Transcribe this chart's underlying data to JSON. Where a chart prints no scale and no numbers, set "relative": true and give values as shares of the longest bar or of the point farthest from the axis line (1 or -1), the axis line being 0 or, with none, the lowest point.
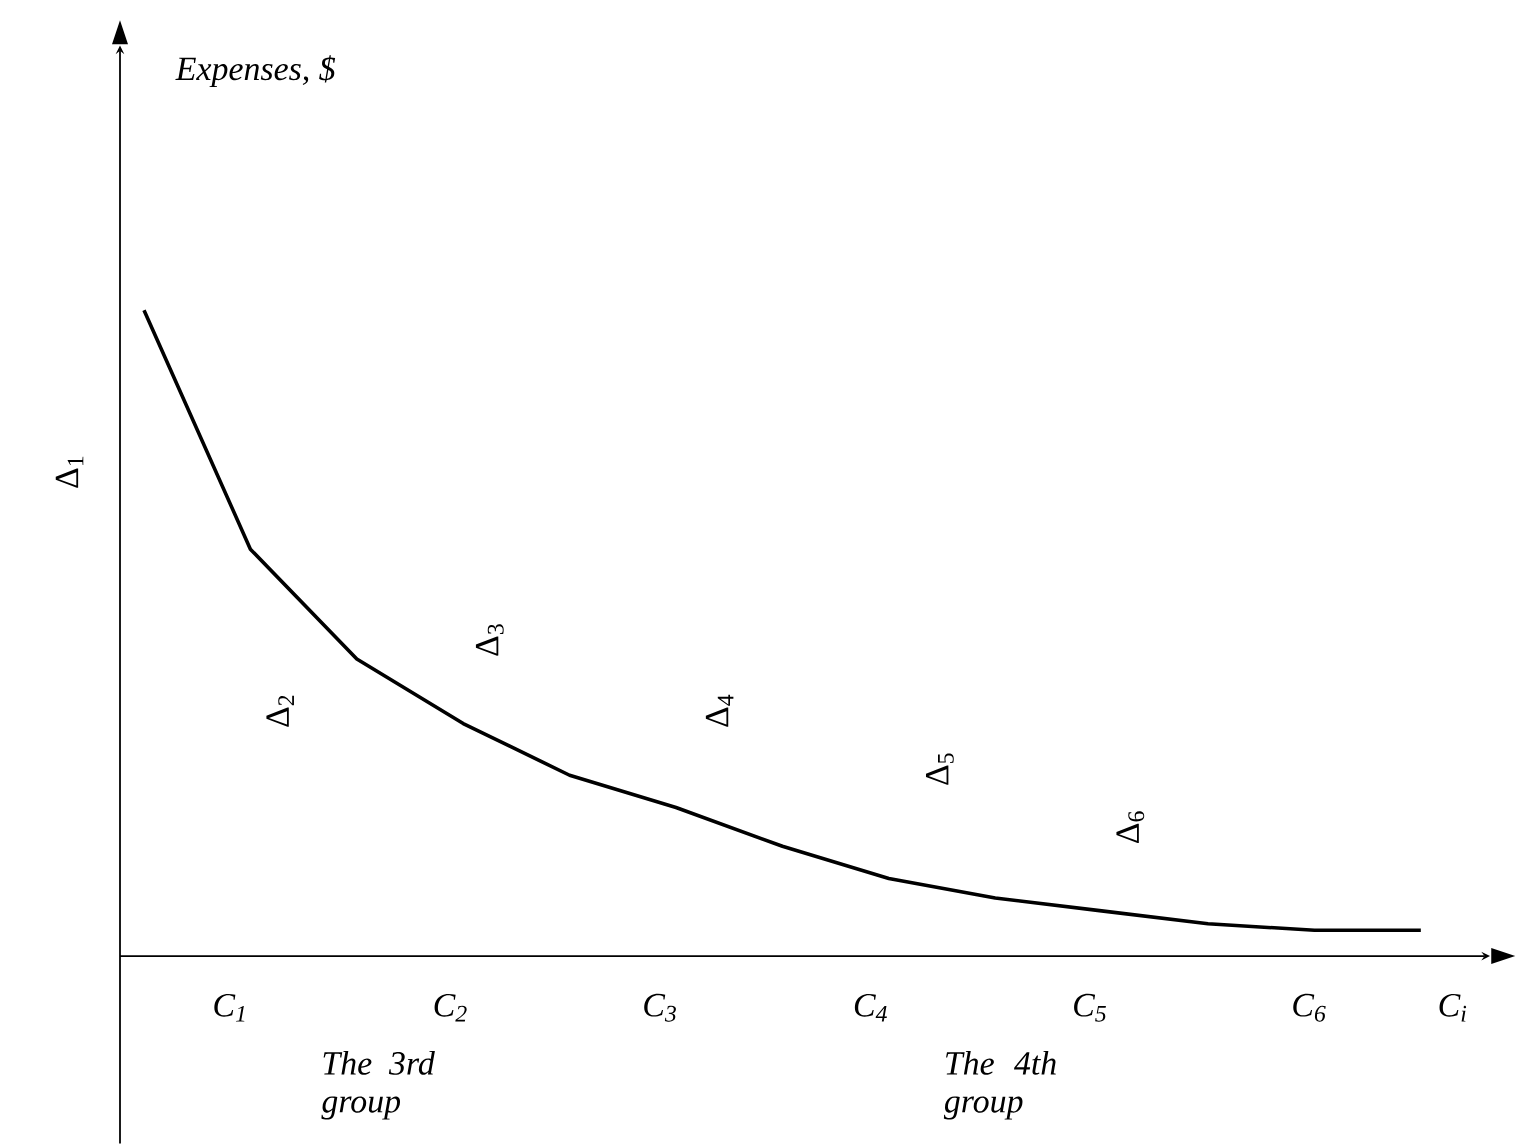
{
  "chart_data": {
    "type": "line",
    "relative": true,
    "categories": [
      null,
      null,
      null,
      null,
      null,
      null,
      null,
      null,
      null,
      null,
      null,
      null,
      null
    ],
    "series": [
      {
        "color": "#000000",
        "values": [
          1,
          0.63,
          0.46,
          0.36,
          0.28,
          0.23,
          0.17,
          0.12,
          0.09,
          0.07,
          0.05,
          0.04,
          0.04
        ]
      }
    ],
    "annotations": [
      "Δ$_{1}$",
      "Δ$_{2}$",
      "Δ$_{3}$",
      "Δ$_{4}$",
      "Δ$_{5}$",
      "Δ$_{6}$",
      "C$_{1}$",
      "C$_{2}$",
      "C$_{3}$",
      "C$_{4}$",
      "C$_{5}$",
      "C$_{6}$",
      "C$_{i}$",
      "The 3rd group",
      "The 4th group",
      "Expenses, $"
    ]
  }
}
